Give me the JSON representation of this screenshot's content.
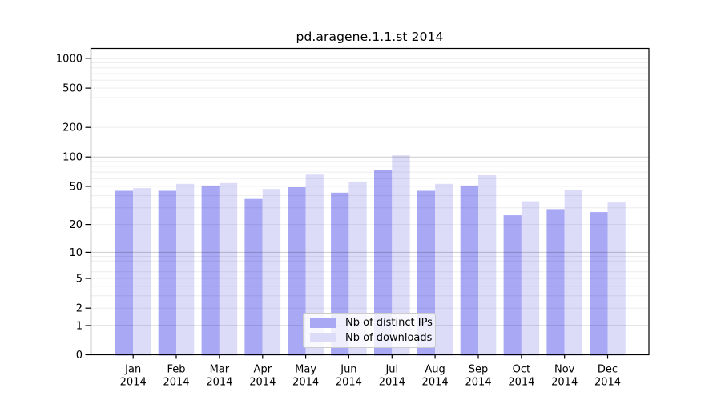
{
  "title": "pd.aragene.1.1.st 2014",
  "chart_data": {
    "type": "bar",
    "title": "pd.aragene.1.1.st 2014",
    "categories": [
      "Jan",
      "Feb",
      "Mar",
      "Apr",
      "May",
      "Jun",
      "Jul",
      "Aug",
      "Sep",
      "Oct",
      "Nov",
      "Dec"
    ],
    "year": "2014",
    "series": [
      {
        "name": "Nb of distinct IPs",
        "color": "#a8a8f5",
        "values": [
          45,
          45,
          51,
          37,
          49,
          43,
          73,
          45,
          51,
          25,
          29,
          27
        ]
      },
      {
        "name": "Nb of downloads",
        "color": "#dcdcf8",
        "values": [
          48,
          53,
          54,
          47,
          66,
          56,
          104,
          53,
          65,
          35,
          46,
          34
        ]
      }
    ],
    "y_ticks": [
      0,
      1,
      2,
      5,
      10,
      20,
      50,
      100,
      200,
      500,
      1000
    ],
    "ylim": [
      0,
      1000
    ],
    "y_scale": "log10(value+1)",
    "xlabel": "",
    "ylabel": "",
    "grid": "horizontal major + minor, drawn over bars",
    "legend_position": "inside bottom-center"
  },
  "colors": {
    "spine": "#000000",
    "grid_major": "rgba(0,0,0,0.20)",
    "grid_minor": "rgba(0,0,0,0.07)",
    "text": "#000000",
    "legend_border": "#cccccc"
  }
}
